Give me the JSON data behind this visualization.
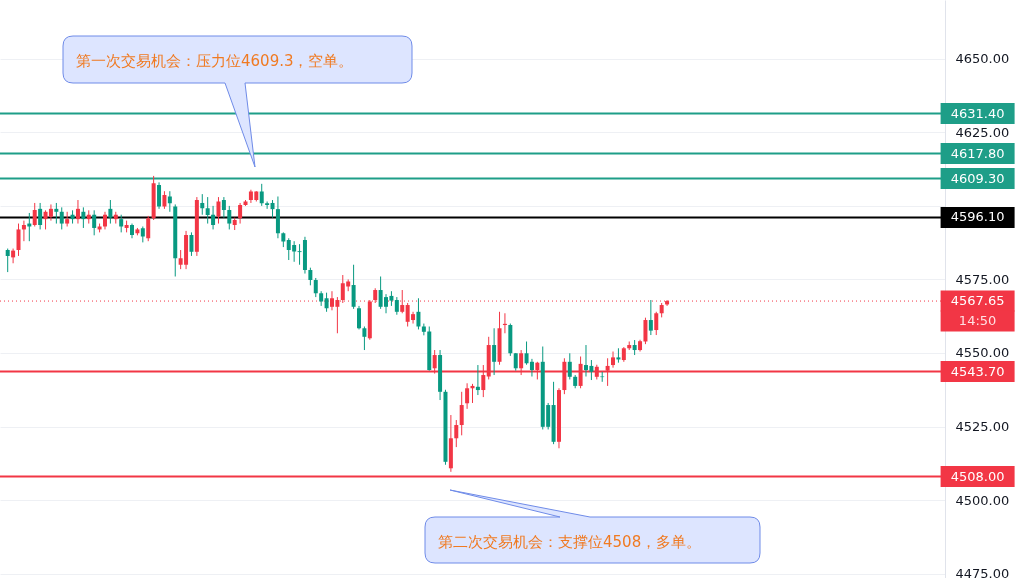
{
  "chart_data": {
    "type": "candlestick",
    "categories": [
      null,
      null,
      null,
      null,
      null,
      null,
      null,
      null,
      null,
      null,
      null,
      null,
      null,
      null,
      null,
      null,
      null,
      null,
      null,
      null,
      null,
      null,
      null,
      null,
      null,
      null,
      null,
      null,
      null,
      null,
      null,
      null,
      null,
      null,
      null,
      null,
      null,
      null,
      null,
      null,
      null,
      null,
      null,
      null,
      null,
      null,
      null,
      null,
      null,
      null,
      null,
      null,
      null,
      null,
      null,
      null,
      null,
      null,
      null,
      null,
      null,
      null,
      null,
      null,
      null,
      null,
      null,
      null,
      null,
      null,
      null,
      null,
      null,
      null,
      null,
      null,
      null,
      null,
      null,
      null,
      null,
      null,
      null,
      null,
      null,
      null,
      null,
      null,
      null,
      null,
      null,
      null,
      null,
      null,
      null,
      null,
      null,
      null,
      null,
      null,
      null,
      null,
      null,
      null,
      null,
      null,
      null,
      null,
      null,
      null,
      null,
      null,
      null,
      null,
      null,
      null,
      null,
      null,
      null,
      null,
      null,
      null,
      null,
      null,
      null,
      null,
      null,
      null,
      null,
      null,
      null,
      null,
      null,
      null,
      null,
      null,
      null,
      null,
      null,
      null,
      null,
      null,
      null,
      null,
      null,
      null,
      null,
      null,
      null,
      null,
      null,
      null,
      null,
      null,
      null,
      null,
      null,
      null,
      null,
      null,
      null,
      null,
      null,
      null,
      null,
      null,
      null,
      null,
      null,
      null,
      null,
      null,
      null
    ],
    "ohlc": [
      [
        4585,
        4585.5,
        4577.5,
        4583
      ],
      [
        4582.5,
        4585.5,
        4580.5,
        4584.8
      ],
      [
        4585,
        4594,
        4583,
        4592
      ],
      [
        4592,
        4595,
        4588,
        4593.5
      ],
      [
        4594,
        4597.6,
        4588,
        4593
      ],
      [
        4593.5,
        4601,
        4593,
        4598.6
      ],
      [
        4599,
        4601,
        4592,
        4593.5
      ],
      [
        4595.5,
        4598.5,
        4592,
        4598
      ],
      [
        4596.3,
        4600.5,
        4595,
        4599
      ],
      [
        4599,
        4601,
        4594,
        4598
      ],
      [
        4598,
        4599.5,
        4592,
        4594
      ],
      [
        4594,
        4598,
        4593,
        4595.5
      ],
      [
        4597,
        4598.5,
        4594,
        4595.5
      ],
      [
        4595.5,
        4602,
        4594,
        4599
      ],
      [
        4598,
        4599.5,
        4592.5,
        4595.5
      ],
      [
        4595.5,
        4598.5,
        4594,
        4597
      ],
      [
        4597,
        4598.5,
        4590,
        4592.5
      ],
      [
        4592,
        4594,
        4591,
        4593
      ],
      [
        4593,
        4598,
        4592,
        4597
      ],
      [
        4599,
        4602,
        4594,
        4596
      ],
      [
        4595.5,
        4598,
        4594,
        4597
      ],
      [
        4595.5,
        4597,
        4591,
        4593
      ],
      [
        4592.5,
        4595,
        4591,
        4593.5
      ],
      [
        4593.5,
        4594,
        4589,
        4590.1
      ],
      [
        4590.7,
        4592.5,
        4590,
        4592
      ],
      [
        4592.4,
        4593,
        4587.6,
        4589.6
      ],
      [
        4589,
        4596.6,
        4588,
        4595.8
      ],
      [
        4595.8,
        4610.2,
        4595.2,
        4607.7
      ],
      [
        4607.1,
        4608,
        4599,
        4599.8
      ],
      [
        4599.8,
        4605,
        4599,
        4603.7
      ],
      [
        4603.2,
        4605,
        4598,
        4600.9
      ],
      [
        4599.8,
        4600.5,
        4576,
        4582.2
      ],
      [
        4580,
        4585,
        4578.5,
        4582.2
      ],
      [
        4580,
        4591.5,
        4578.5,
        4590.1
      ],
      [
        4590.1,
        4591,
        4583,
        4584.4
      ],
      [
        4584.4,
        4603,
        4583,
        4602
      ],
      [
        4601,
        4604,
        4597,
        4599.2
      ],
      [
        4599.2,
        4603,
        4594,
        4596.9
      ],
      [
        4597,
        4600,
        4592,
        4593.5
      ],
      [
        4596.4,
        4603,
        4594,
        4601.5
      ],
      [
        4602,
        4603,
        4596,
        4598.6
      ],
      [
        4598.6,
        4600,
        4592,
        4594
      ],
      [
        4593.5,
        4596,
        4591.8,
        4595.2
      ],
      [
        4595.8,
        4601,
        4594,
        4600.3
      ],
      [
        4600.3,
        4602,
        4600,
        4601.5
      ],
      [
        4602,
        4605.5,
        4601,
        4604.9
      ],
      [
        4602,
        4605,
        4601.5,
        4604.9
      ],
      [
        4604.9,
        4607.5,
        4600,
        4600.9
      ],
      [
        4600.9,
        4601.5,
        4599,
        4600.3
      ],
      [
        4601,
        4602,
        4596,
        4598.9
      ],
      [
        4598.9,
        4603.2,
        4589,
        4590.7
      ],
      [
        4590.7,
        4591,
        4586,
        4587.9
      ],
      [
        4588.4,
        4589,
        4581.6,
        4585
      ],
      [
        4586.7,
        4588,
        4581,
        4584.5
      ],
      [
        4584.6,
        4587,
        4580,
        4584.3
      ],
      [
        4588.4,
        4589.5,
        4577,
        4578.2
      ],
      [
        4578.2,
        4579,
        4573,
        4574.8
      ],
      [
        4574.8,
        4575.5,
        4569,
        4570.3
      ],
      [
        4570.3,
        4571,
        4566,
        4567.5
      ],
      [
        4568.6,
        4570.5,
        4564,
        4565.2
      ],
      [
        4565.7,
        4571,
        4564.5,
        4568.6
      ],
      [
        4565.7,
        4569,
        4556.7,
        4568
      ],
      [
        4568,
        4576.5,
        4567,
        4573.7
      ],
      [
        4572.6,
        4575,
        4571,
        4574.3
      ],
      [
        4573.1,
        4580,
        4565,
        4565.7
      ],
      [
        4565.2,
        4566,
        4558,
        4558.4
      ],
      [
        4558.4,
        4559,
        4551,
        4555.5
      ],
      [
        4555,
        4568,
        4554.5,
        4567.5
      ],
      [
        4568,
        4572,
        4567,
        4571.4
      ],
      [
        4571.4,
        4576,
        4565,
        4565.7
      ],
      [
        4569,
        4570,
        4563.5,
        4565.7
      ],
      [
        4569.4,
        4571,
        4566,
        4567.8
      ],
      [
        4568,
        4569,
        4563,
        4564
      ],
      [
        4564,
        4571.4,
        4563.5,
        4566.3
      ],
      [
        4560.6,
        4567,
        4559,
        4566.3
      ],
      [
        4561.2,
        4564,
        4560,
        4563.2
      ],
      [
        4564,
        4568.6,
        4558,
        4559
      ],
      [
        4559,
        4560,
        4556,
        4557.2
      ],
      [
        4557.3,
        4559,
        4544,
        4544.2
      ],
      [
        4544.8,
        4551,
        4543,
        4549.3
      ],
      [
        4549.3,
        4551,
        4534,
        4536.8
      ],
      [
        4536.8,
        4537.5,
        4512,
        4513
      ],
      [
        4510.8,
        4528.9,
        4509.6,
        4521
      ],
      [
        4521,
        4527.2,
        4518,
        4525.5
      ],
      [
        4525.5,
        4536.8,
        4522,
        4532.3
      ],
      [
        4532.9,
        4539.7,
        4531,
        4538
      ],
      [
        4538,
        4539.5,
        4533,
        4538.8
      ],
      [
        4538.5,
        4545.9,
        4535.7,
        4537.4
      ],
      [
        4537.4,
        4545.9,
        4535,
        4542.5
      ],
      [
        4542,
        4555.5,
        4541,
        4552.7
      ],
      [
        4552.7,
        4558.4,
        4542.5,
        4547
      ],
      [
        4547,
        4564,
        4546,
        4558.4
      ],
      [
        4559.5,
        4563.5,
        4556.7,
        4559.9
      ],
      [
        4559.5,
        4560,
        4549,
        4549.9
      ],
      [
        4549.9,
        4550,
        4544,
        4544.8
      ],
      [
        4544.8,
        4551,
        4542.5,
        4549.9
      ],
      [
        4549.9,
        4553.9,
        4546,
        4546.5
      ],
      [
        4547,
        4548,
        4542,
        4544.2
      ],
      [
        4544.2,
        4547,
        4541,
        4546.7
      ],
      [
        4547,
        4552.2,
        4524,
        4524.9
      ],
      [
        4532.3,
        4533,
        4524,
        4524.9
      ],
      [
        4532.3,
        4540.2,
        4519,
        4519.8
      ],
      [
        4519.8,
        4538,
        4517.6,
        4537.4
      ],
      [
        4537.4,
        4548.2,
        4536,
        4547
      ],
      [
        4547,
        4549.9,
        4541,
        4541.9
      ],
      [
        4541.9,
        4542.5,
        4538,
        4538.8
      ],
      [
        4538.8,
        4548.8,
        4538,
        4546.3
      ],
      [
        4545.9,
        4552.7,
        4542,
        4544.2
      ],
      [
        4545.6,
        4547.6,
        4540.8,
        4543.6
      ],
      [
        4541.9,
        4546,
        4541,
        4545.3
      ],
      [
        4542,
        4543.6,
        4540.2,
        4541.8
      ],
      [
        4544,
        4548.2,
        4538.8,
        4545.6
      ],
      [
        4545.9,
        4550.5,
        4545,
        4548.5
      ],
      [
        4548.5,
        4551.6,
        4546.7,
        4547.8
      ],
      [
        4547.6,
        4552,
        4547,
        4551.6
      ],
      [
        4551.6,
        4553.9,
        4551,
        4552.7
      ],
      [
        4552.7,
        4554.4,
        4549.3,
        4551
      ],
      [
        4551,
        4554.5,
        4550.5,
        4554
      ],
      [
        4553.9,
        4562,
        4553,
        4561.2
      ],
      [
        4561.2,
        4568,
        4556.1,
        4557.6
      ],
      [
        4557.8,
        4564,
        4556.1,
        4563.5
      ],
      [
        4563.5,
        4567,
        4562.1,
        4566.3
      ],
      [
        4566.5,
        4568,
        4566,
        4567.65
      ],
      null,
      null,
      null,
      null,
      null,
      null,
      null,
      null,
      null,
      null,
      null,
      null,
      null,
      null,
      null,
      null,
      null,
      null,
      null,
      null,
      null,
      null,
      null,
      null,
      null,
      null,
      null,
      null,
      null,
      null,
      null,
      null,
      null,
      null,
      null,
      null,
      null,
      null,
      null,
      null,
      null,
      null,
      null,
      null,
      null,
      null,
      null,
      null,
      null,
      null
    ],
    "ylim": [
      4473.5,
      4670
    ],
    "yticks": [
      {
        "value": 4475,
        "label": "4475.00"
      },
      {
        "value": 4500,
        "label": "4500.00"
      },
      {
        "value": 4525,
        "label": "4525.00"
      },
      {
        "value": 4550,
        "label": "4550.00"
      },
      {
        "value": 4575,
        "label": "4575.00"
      },
      {
        "value": 4600,
        "label": null
      },
      {
        "value": 4625,
        "label": "4625.00"
      },
      {
        "value": 4650,
        "label": "4650.00"
      }
    ],
    "tick_labels": "y",
    "grid": "y",
    "ref_lines": [
      {
        "axis": "y",
        "value": 4631.4,
        "label": "4631.40",
        "color": "#1e9e88"
      },
      {
        "axis": "y",
        "value": 4617.8,
        "label": "4617.80",
        "color": "#1e9e88"
      },
      {
        "axis": "y",
        "value": 4609.3,
        "label": "4609.30",
        "color": "#1e9e88"
      },
      {
        "axis": "y",
        "value": 4596.1,
        "label": "4596.10",
        "color": "#000000"
      },
      {
        "axis": "y",
        "value": 4567.65,
        "label": "4567.65",
        "color": "#f23645",
        "line_style": "dotted"
      },
      {
        "axis": "y",
        "value": 4543.7,
        "label": "4543.70",
        "color": "#f23645"
      },
      {
        "axis": "y",
        "value": 4508,
        "label": "4508.00",
        "color": "#f23645"
      }
    ],
    "annotations": [
      "第一次交易机会：压力位4609.3，空单。",
      "第二次交易机会：支撑位4508，多单。",
      "14:50"
    ]
  }
}
